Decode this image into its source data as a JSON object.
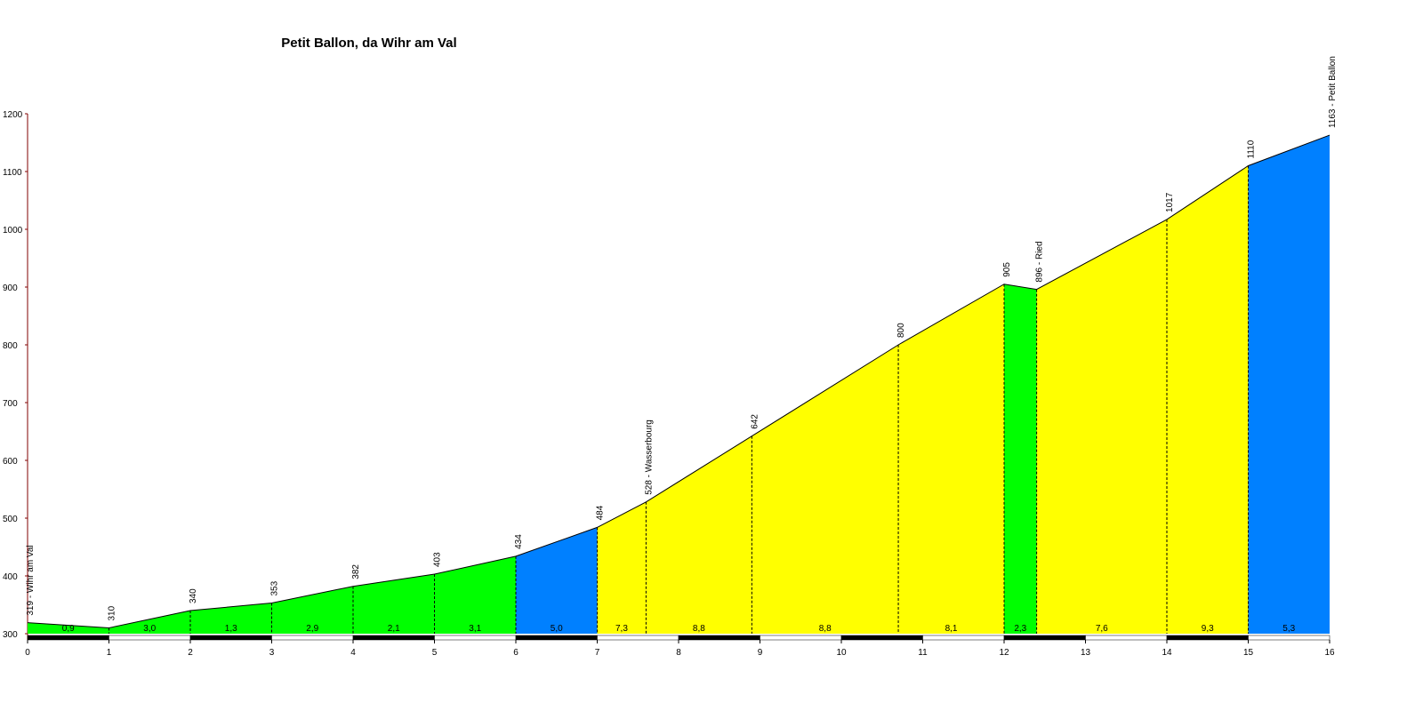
{
  "chart_data": {
    "type": "profile",
    "title": "Petit Ballon, da Wihr am Val",
    "x": [
      0,
      1,
      2,
      3,
      4,
      5,
      6,
      7,
      7.6,
      8.9,
      10.7,
      12,
      12.4,
      14,
      15,
      16
    ],
    "values": [
      319,
      310,
      340,
      353,
      382,
      403,
      434,
      484,
      528,
      642,
      800,
      905,
      896,
      1017,
      1110,
      1163
    ],
    "value_labels": [
      "319 - Wihr am Val",
      "310",
      "340",
      "353",
      "382",
      "403",
      "434",
      "484",
      "528 - Wasserbourg",
      "642",
      "800",
      "905",
      "896 - Ried",
      "1017",
      "1110",
      "1163 - Petit Ballon"
    ],
    "grade_labels": [
      "0,9",
      "3,0",
      "1,3",
      "2,9",
      "2,1",
      "3,1",
      "5,0",
      "7,3",
      "8,8",
      "8,8",
      "8,1",
      "2,3",
      "7,6",
      "9,3",
      "5,3"
    ],
    "segment_colors": [
      "#00ff00",
      "#00ff00",
      "#00ff00",
      "#00ff00",
      "#00ff00",
      "#00ff00",
      "#0080ff",
      "#ffff00",
      "#ffff00",
      "#ffff00",
      "#ffff00",
      "#00ff00",
      "#ffff00",
      "#ffff00",
      "#0080ff"
    ],
    "xlim": [
      0,
      16
    ],
    "xticks": [
      0,
      1,
      2,
      3,
      4,
      5,
      6,
      7,
      8,
      9,
      10,
      11,
      12,
      13,
      14,
      15,
      16
    ],
    "ylim": [
      300,
      1200
    ],
    "yticks": [
      300,
      400,
      500,
      600,
      700,
      800,
      900,
      1000,
      1100,
      1200
    ]
  }
}
